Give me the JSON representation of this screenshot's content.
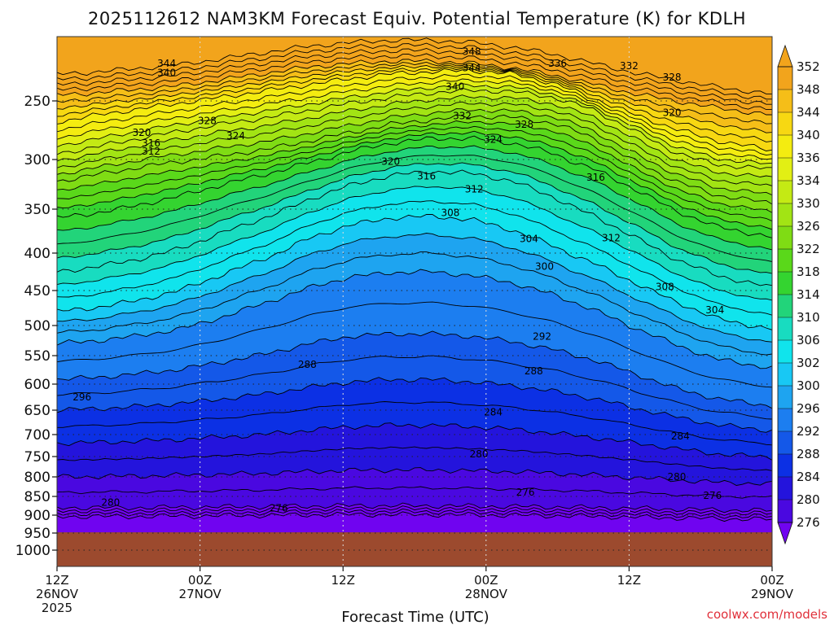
{
  "chart_data": {
    "type": "heatmap",
    "title": "2025112612 NAM3KM Forecast Equiv. Potential Temperature (K) for KDLH",
    "xlabel": "Forecast Time (UTC)",
    "ylabel": "",
    "credit": "coolwx.com/models",
    "x_ticks": [
      {
        "hour": 0,
        "line1": "12Z",
        "line2": "26NOV",
        "line3": "2025"
      },
      {
        "hour": 12,
        "line1": "00Z",
        "line2": "27NOV",
        "line3": ""
      },
      {
        "hour": 24,
        "line1": "12Z",
        "line2": "",
        "line3": ""
      },
      {
        "hour": 36,
        "line1": "00Z",
        "line2": "28NOV",
        "line3": ""
      },
      {
        "hour": 48,
        "line1": "12Z",
        "line2": "",
        "line3": ""
      },
      {
        "hour": 60,
        "line1": "00Z",
        "line2": "29NOV",
        "line3": ""
      }
    ],
    "x_range_hours": [
      0,
      60
    ],
    "y_ticks": [
      "250",
      "300",
      "350",
      "400",
      "450",
      "500",
      "550",
      "600",
      "650",
      "700",
      "750",
      "800",
      "850",
      "900",
      "950",
      "1000"
    ],
    "y_tick_values": [
      250,
      300,
      350,
      400,
      450,
      500,
      550,
      600,
      650,
      700,
      750,
      800,
      850,
      900,
      950,
      1000
    ],
    "colorbar": {
      "labels": [
        "352",
        "348",
        "344",
        "340",
        "336",
        "334",
        "330",
        "326",
        "322",
        "318",
        "314",
        "310",
        "306",
        "302",
        "300",
        "296",
        "292",
        "288",
        "284",
        "280",
        "276"
      ],
      "colors": [
        "#f2a41c",
        "#f5be18",
        "#f7d812",
        "#f4ec10",
        "#e2ef14",
        "#c4ea14",
        "#a2e414",
        "#7fdc14",
        "#5ad81a",
        "#34d430",
        "#22d47a",
        "#18dcc0",
        "#10e4ec",
        "#18c8f4",
        "#1ea4f0",
        "#1c7ef0",
        "#1458e8",
        "#0c30e4",
        "#2414dc",
        "#4a08e0",
        "#7004f0"
      ],
      "extend": "both"
    },
    "surface_color": "#9c4a2e",
    "contour_labels": [
      {
        "text": "348",
        "t": 34.8,
        "p": 208
      },
      {
        "text": "344",
        "t": 9.2,
        "p": 218
      },
      {
        "text": "344",
        "t": 34.8,
        "p": 222
      },
      {
        "text": "340",
        "t": 9.2,
        "p": 226
      },
      {
        "text": "340",
        "t": 33.4,
        "p": 238
      },
      {
        "text": "336",
        "t": 42.0,
        "p": 218
      },
      {
        "text": "332",
        "t": 48.0,
        "p": 220
      },
      {
        "text": "328",
        "t": 51.6,
        "p": 230
      },
      {
        "text": "332",
        "t": 34.0,
        "p": 263
      },
      {
        "text": "328",
        "t": 12.6,
        "p": 267
      },
      {
        "text": "328",
        "t": 39.2,
        "p": 270
      },
      {
        "text": "320",
        "t": 7.1,
        "p": 277
      },
      {
        "text": "324",
        "t": 15.0,
        "p": 280
      },
      {
        "text": "324",
        "t": 36.6,
        "p": 283
      },
      {
        "text": "320",
        "t": 51.6,
        "p": 260
      },
      {
        "text": "316",
        "t": 7.9,
        "p": 286
      },
      {
        "text": "312",
        "t": 7.9,
        "p": 293
      },
      {
        "text": "320",
        "t": 28.0,
        "p": 302
      },
      {
        "text": "316",
        "t": 31.0,
        "p": 317
      },
      {
        "text": "312",
        "t": 35.0,
        "p": 330
      },
      {
        "text": "316",
        "t": 45.2,
        "p": 318
      },
      {
        "text": "308",
        "t": 33.0,
        "p": 354
      },
      {
        "text": "304",
        "t": 39.6,
        "p": 384
      },
      {
        "text": "312",
        "t": 46.5,
        "p": 383
      },
      {
        "text": "300",
        "t": 40.9,
        "p": 418
      },
      {
        "text": "308",
        "t": 51.0,
        "p": 445
      },
      {
        "text": "304",
        "t": 55.2,
        "p": 478
      },
      {
        "text": "292",
        "t": 40.7,
        "p": 518
      },
      {
        "text": "288",
        "t": 21.0,
        "p": 566
      },
      {
        "text": "288",
        "t": 40.0,
        "p": 577
      },
      {
        "text": "296",
        "t": 2.1,
        "p": 625
      },
      {
        "text": "284",
        "t": 36.6,
        "p": 654
      },
      {
        "text": "284",
        "t": 52.3,
        "p": 704
      },
      {
        "text": "280",
        "t": 35.4,
        "p": 744
      },
      {
        "text": "280",
        "t": 52.0,
        "p": 800
      },
      {
        "text": "276",
        "t": 39.3,
        "p": 840
      },
      {
        "text": "276",
        "t": 55.0,
        "p": 848
      },
      {
        "text": "280",
        "t": 4.5,
        "p": 866
      },
      {
        "text": "276",
        "t": 18.6,
        "p": 882
      }
    ]
  }
}
